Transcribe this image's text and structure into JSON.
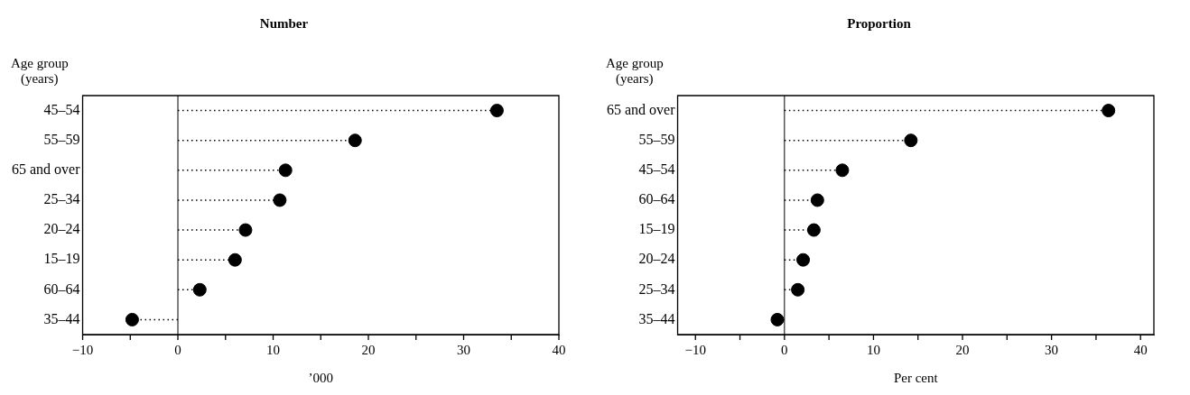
{
  "chart_data": [
    {
      "type": "lollipop",
      "orientation": "horizontal",
      "title": "Number",
      "ylabel": "Age group\n(years)",
      "xlabel": "’000",
      "categories": [
        "45–54",
        "55–59",
        "65 and over",
        "25–34",
        "20–24",
        "15–19",
        "60–64",
        "35–44"
      ],
      "values": [
        33.5,
        18.6,
        11.3,
        10.7,
        7.1,
        6.0,
        2.3,
        -4.8
      ],
      "color": "#000000",
      "xlim": [
        -10,
        40
      ],
      "xticks": [
        -10,
        {
          "value": -5,
          "label": null
        },
        0,
        {
          "value": 5,
          "label": null
        },
        10,
        {
          "value": 15,
          "label": null
        },
        20,
        {
          "value": 25,
          "label": null
        },
        30,
        {
          "value": 35,
          "label": null
        },
        40
      ],
      "ref_lines": [
        {
          "axis": "x",
          "value": 0,
          "color": "#000000",
          "line_style": "solid"
        }
      ],
      "grid": false,
      "legend": false,
      "marker": "circle",
      "line_style": "dotted"
    },
    {
      "type": "lollipop",
      "orientation": "horizontal",
      "title": "Proportion",
      "ylabel": "Age group\n(years)",
      "xlabel": "Per cent",
      "categories": [
        "65 and over",
        "55–59",
        "45–54",
        "60–64",
        "15–19",
        "20–24",
        "25–34",
        "35–44"
      ],
      "values": [
        36.4,
        14.2,
        6.5,
        3.7,
        3.3,
        2.1,
        1.5,
        -0.8
      ],
      "color": "#000000",
      "xlim": [
        -12,
        41.5
      ],
      "xticks": [
        -10,
        {
          "value": -5,
          "label": null
        },
        0,
        {
          "value": 5,
          "label": null
        },
        10,
        {
          "value": 15,
          "label": null
        },
        20,
        {
          "value": 25,
          "label": null
        },
        30,
        {
          "value": 35,
          "label": null
        },
        40
      ],
      "ref_lines": [
        {
          "axis": "x",
          "value": 0,
          "color": "#000000",
          "line_style": "solid"
        }
      ],
      "grid": false,
      "legend": false,
      "marker": "circle",
      "line_style": "dotted"
    }
  ]
}
